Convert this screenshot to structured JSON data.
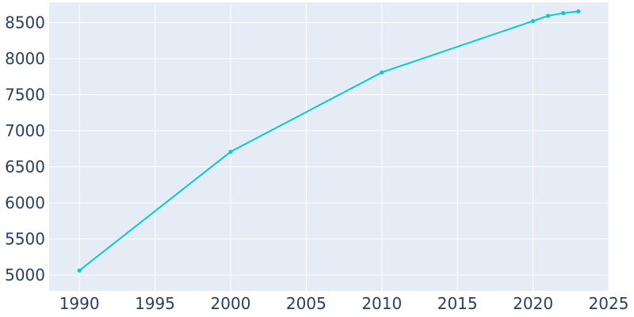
{
  "chart_data": {
    "type": "line",
    "title": "",
    "xlabel": "",
    "ylabel": "",
    "xlim": [
      1988,
      2025
    ],
    "ylim": [
      4780,
      8780
    ],
    "x_ticks": [
      1990,
      1995,
      2000,
      2005,
      2010,
      2015,
      2020,
      2025
    ],
    "y_ticks": [
      5000,
      5500,
      6000,
      6500,
      7000,
      7500,
      8000,
      8500
    ],
    "grid": true,
    "legend": "none",
    "series": [
      {
        "color": "#00cccc",
        "points": [
          {
            "x": 1990,
            "y": 5062
          },
          {
            "x": 2000,
            "y": 6708
          },
          {
            "x": 2010,
            "y": 7809
          },
          {
            "x": 2020,
            "y": 8521
          },
          {
            "x": 2021,
            "y": 8594
          },
          {
            "x": 2022,
            "y": 8631
          },
          {
            "x": 2023,
            "y": 8655
          }
        ]
      }
    ],
    "colors": {
      "plot_background": "#e5ecf6",
      "grid": "#ffffff",
      "tick_text": "#2a3f5f"
    }
  }
}
